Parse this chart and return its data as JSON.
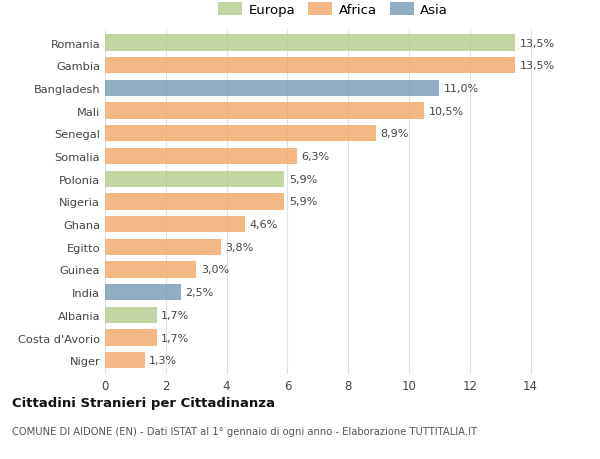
{
  "categories": [
    "Romania",
    "Gambia",
    "Bangladesh",
    "Mali",
    "Senegal",
    "Somalia",
    "Polonia",
    "Nigeria",
    "Ghana",
    "Egitto",
    "Guinea",
    "India",
    "Albania",
    "Costa d'Avorio",
    "Niger"
  ],
  "values": [
    13.5,
    13.5,
    11.0,
    10.5,
    8.9,
    6.3,
    5.9,
    5.9,
    4.6,
    3.8,
    3.0,
    2.5,
    1.7,
    1.7,
    1.3
  ],
  "labels": [
    "13,5%",
    "13,5%",
    "11,0%",
    "10,5%",
    "8,9%",
    "6,3%",
    "5,9%",
    "5,9%",
    "4,6%",
    "3,8%",
    "3,0%",
    "2,5%",
    "1,7%",
    "1,7%",
    "1,3%"
  ],
  "continent": [
    "Europa",
    "Africa",
    "Asia",
    "Africa",
    "Africa",
    "Africa",
    "Europa",
    "Africa",
    "Africa",
    "Africa",
    "Africa",
    "Asia",
    "Europa",
    "Africa",
    "Africa"
  ],
  "colors": {
    "Europa": "#b5cc8e",
    "Africa": "#f2a96a",
    "Asia": "#7b9bb5"
  },
  "title": "Cittadini Stranieri per Cittadinanza",
  "subtitle": "COMUNE DI AIDONE (EN) - Dati ISTAT al 1° gennaio di ogni anno - Elaborazione TUTTITALIA.IT",
  "xlim": [
    0,
    15
  ],
  "xticks": [
    0,
    2,
    4,
    6,
    8,
    10,
    12,
    14
  ],
  "background_color": "#ffffff",
  "grid_color": "#e0e0e0",
  "bar_height": 0.72,
  "bar_alpha": 0.82,
  "label_fontsize": 8.0,
  "ytick_fontsize": 8.2,
  "xtick_fontsize": 8.5
}
